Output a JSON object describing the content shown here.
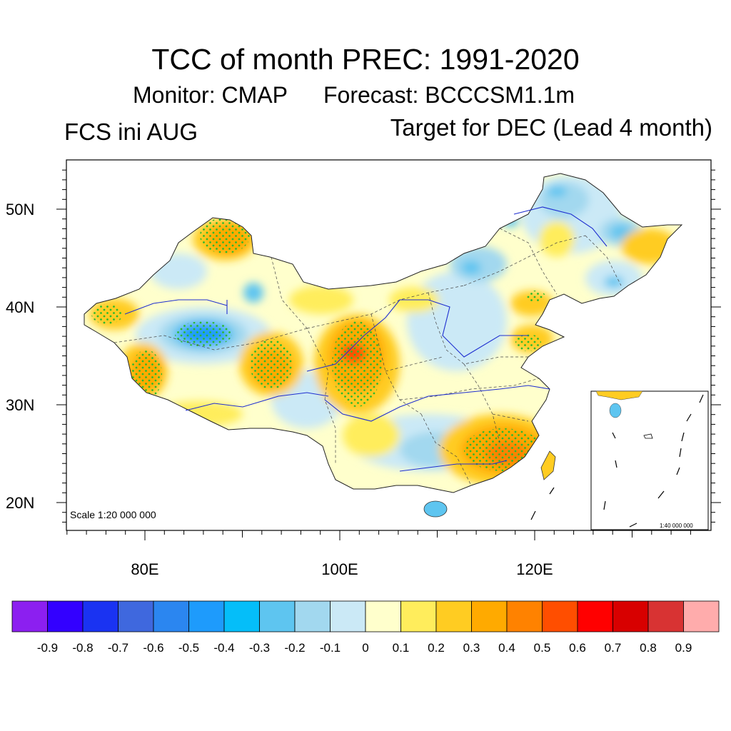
{
  "header": {
    "title": "TCC of month PREC: 1991-2020",
    "subtitle_monitor": "Monitor: CMAP",
    "subtitle_forecast": "Forecast: BCCCSM1.1m",
    "left_label": "FCS ini AUG",
    "right_label": "Target for DEC (Lead 4 month)"
  },
  "map": {
    "scale_text": "Scale 1:20 000 000",
    "inset_scale_text": "1:40 000 000",
    "lat_labels": [
      "20N",
      "30N",
      "40N",
      "50N"
    ],
    "lon_labels": [
      "80E",
      "100E",
      "120E"
    ],
    "colors": {
      "outline": "#333333",
      "rivers": "#1f2fd0",
      "stipple": "#2db82d"
    }
  },
  "colorbar": {
    "labels": [
      "-0.9",
      "-0.8",
      "-0.7",
      "-0.6",
      "-0.5",
      "-0.4",
      "-0.3",
      "-0.2",
      "-0.1",
      "0",
      "0.1",
      "0.2",
      "0.3",
      "0.4",
      "0.5",
      "0.6",
      "0.7",
      "0.8",
      "0.9"
    ],
    "colors": [
      "#8c1ff0",
      "#3300ff",
      "#1a33f2",
      "#3f68de",
      "#2b86f0",
      "#1e9bfc",
      "#05bef9",
      "#5ec5f0",
      "#a2d8ef",
      "#cbe9f6",
      "#ffffcc",
      "#ffed5c",
      "#ffcc22",
      "#ffaa00",
      "#ff8200",
      "#ff4e00",
      "#ff0000",
      "#d80000",
      "#d83333",
      "#ffacac"
    ]
  }
}
